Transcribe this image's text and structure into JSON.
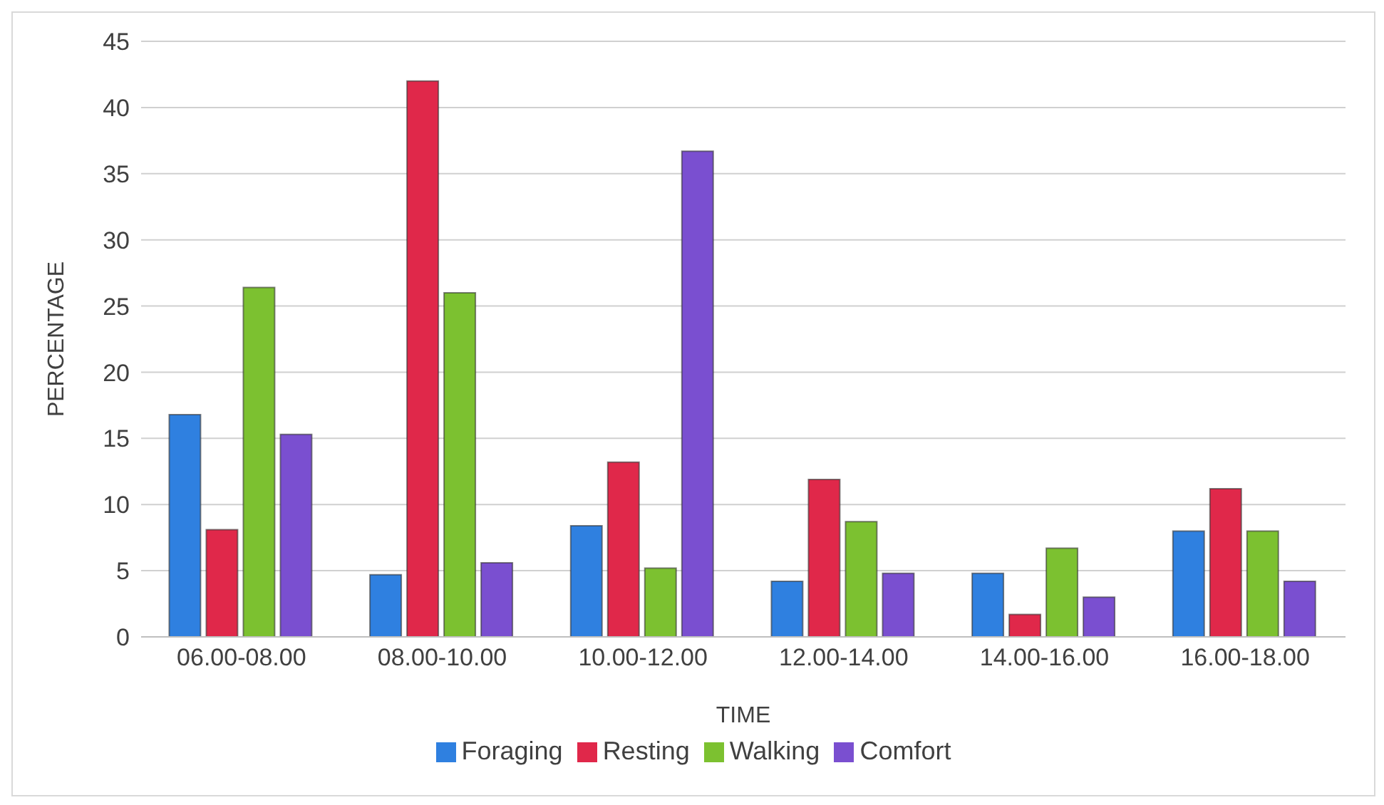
{
  "chart_data": {
    "type": "bar",
    "xlabel": "TIME",
    "ylabel": "PERCENTAGE",
    "categories": [
      "06.00-08.00",
      "08.00-10.00",
      "10.00-12.00",
      "12.00-14.00",
      "14.00-16.00",
      "16.00-18.00"
    ],
    "series": [
      {
        "name": "Foraging",
        "color": "#2f80e0",
        "values": [
          16.8,
          4.7,
          8.4,
          4.2,
          4.8,
          8.0
        ]
      },
      {
        "name": "Resting",
        "color": "#e0284a",
        "values": [
          8.1,
          42.0,
          13.2,
          11.9,
          1.7,
          11.2
        ]
      },
      {
        "name": "Walking",
        "color": "#7cc130",
        "values": [
          26.4,
          26.0,
          5.2,
          8.7,
          6.7,
          8.0
        ]
      },
      {
        "name": "Comfort",
        "color": "#7a4fd0",
        "values": [
          15.3,
          5.6,
          36.7,
          4.8,
          3.0,
          4.2
        ]
      }
    ],
    "ylim": [
      0,
      45
    ],
    "yticks": [
      0,
      5,
      10,
      15,
      20,
      25,
      30,
      35,
      40,
      45
    ],
    "grid": "y",
    "legend": "bottom"
  }
}
